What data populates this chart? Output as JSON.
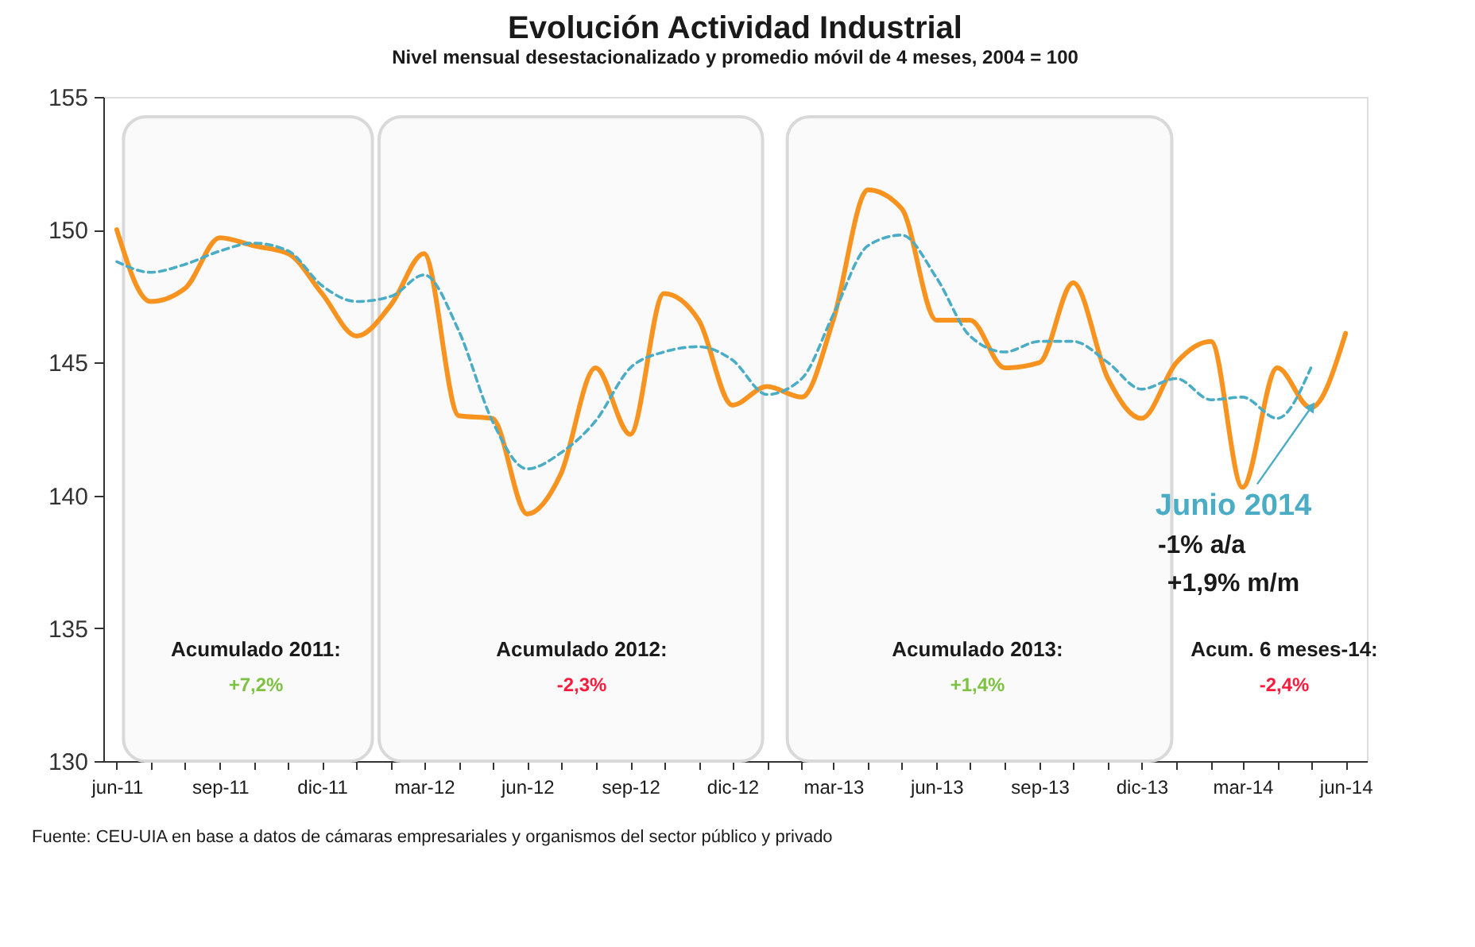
{
  "chart_data": {
    "type": "line",
    "title": "Evolución Actividad Industrial",
    "subtitle": "Nivel mensual desestacionalizado y promedio móvil de 4 meses, 2004 = 100",
    "x": [
      "2011-06",
      "2011-07",
      "2011-08",
      "2011-09",
      "2011-10",
      "2011-11",
      "2011-12",
      "2012-01",
      "2012-02",
      "2012-03",
      "2012-04",
      "2012-05",
      "2012-06",
      "2012-07",
      "2012-08",
      "2012-09",
      "2012-10",
      "2012-11",
      "2012-12",
      "2013-01",
      "2013-02",
      "2013-03",
      "2013-04",
      "2013-05",
      "2013-06",
      "2013-07",
      "2013-08",
      "2013-09",
      "2013-10",
      "2013-11",
      "2013-12",
      "2014-01",
      "2014-02",
      "2014-03",
      "2014-04",
      "2014-05",
      "2014-06"
    ],
    "series": [
      {
        "color": "#f7931e",
        "line_style": "solid",
        "values": [
          150.0,
          147.3,
          147.8,
          149.7,
          149.4,
          149.1,
          147.6,
          146.0,
          147.2,
          149.1,
          143.0,
          142.9,
          139.3,
          140.8,
          144.8,
          142.3,
          147.6,
          146.6,
          143.4,
          144.1,
          143.7,
          146.6,
          151.5,
          150.8,
          146.6,
          146.6,
          144.8,
          145.0,
          148.0,
          144.4,
          142.9,
          145.0,
          145.8,
          140.3,
          144.8,
          143.3,
          146.1
        ]
      },
      {
        "color": "#4bacc6",
        "line_style": "dashed",
        "values": [
          148.8,
          148.4,
          148.7,
          149.2,
          149.5,
          149.2,
          147.9,
          147.3,
          147.5,
          148.3,
          146.2,
          142.8,
          141.0,
          141.6,
          142.8,
          144.8,
          145.4,
          145.6,
          145.1,
          143.8,
          144.4,
          146.8,
          149.4,
          149.8,
          148.2,
          146.0,
          145.4,
          145.8,
          145.8,
          145.0,
          144.0,
          144.4,
          143.6,
          143.7,
          142.9,
          144.8,
          null
        ]
      }
    ],
    "xlim": [
      "2011-05-20",
      "2014-06-20"
    ],
    "xticks": [
      {
        "value": "2011-06",
        "label": "jun-11"
      },
      {
        "value": "2011-07",
        "label": null
      },
      {
        "value": "2011-08",
        "label": null
      },
      {
        "value": "2011-09",
        "label": "sep-11"
      },
      {
        "value": "2011-10",
        "label": null
      },
      {
        "value": "2011-11",
        "label": null
      },
      {
        "value": "2011-12",
        "label": "dic-11"
      },
      {
        "value": "2012-01",
        "label": null
      },
      {
        "value": "2012-02",
        "label": null
      },
      {
        "value": "2012-03",
        "label": "mar-12"
      },
      {
        "value": "2012-04",
        "label": null
      },
      {
        "value": "2012-05",
        "label": null
      },
      {
        "value": "2012-06",
        "label": "jun-12"
      },
      {
        "value": "2012-07",
        "label": null
      },
      {
        "value": "2012-08",
        "label": null
      },
      {
        "value": "2012-09",
        "label": "sep-12"
      },
      {
        "value": "2012-10",
        "label": null
      },
      {
        "value": "2012-11",
        "label": null
      },
      {
        "value": "2012-12",
        "label": "dic-12"
      },
      {
        "value": "2013-01",
        "label": null
      },
      {
        "value": "2013-02",
        "label": null
      },
      {
        "value": "2013-03",
        "label": "mar-13"
      },
      {
        "value": "2013-04",
        "label": null
      },
      {
        "value": "2013-05",
        "label": null
      },
      {
        "value": "2013-06",
        "label": "jun-13"
      },
      {
        "value": "2013-07",
        "label": null
      },
      {
        "value": "2013-08",
        "label": null
      },
      {
        "value": "2013-09",
        "label": "sep-13"
      },
      {
        "value": "2013-10",
        "label": null
      },
      {
        "value": "2013-11",
        "label": null
      },
      {
        "value": "2013-12",
        "label": "dic-13"
      },
      {
        "value": "2014-01",
        "label": null
      },
      {
        "value": "2014-02",
        "label": null
      },
      {
        "value": "2014-03",
        "label": "mar-14"
      },
      {
        "value": "2014-04",
        "label": null
      },
      {
        "value": "2014-05",
        "label": null
      },
      {
        "value": "2014-06",
        "label": "jun-14"
      }
    ],
    "ylim": [
      130,
      155
    ],
    "yticks": [
      130,
      135,
      140,
      145,
      150,
      155
    ],
    "grid": false,
    "marker": "none",
    "bands": [
      {
        "axis": "x",
        "from": "2011-06-07",
        "to": "2012-01-15",
        "color": "#d9d9d9"
      },
      {
        "axis": "x",
        "from": "2012-01-21",
        "to": "2012-12-28",
        "color": "#d9d9d9"
      },
      {
        "axis": "x",
        "from": "2013-01-19",
        "to": "2013-12-28",
        "color": "#d9d9d9"
      }
    ],
    "annotations": [
      "Acumulado 2011:",
      "+7,2%",
      "Acumulado 2012:",
      "-2,3%",
      "Acumulado 2013:",
      "+1,4%",
      "Acum. 6 meses-14:",
      "-2,4%",
      {
        "text": "Junio 2014",
        "x": "2014-05",
        "y": 143.3
      },
      "-1% a/a",
      "+1,9% m/m",
      "Fuente: CEU-UIA en base a datos de cámaras empresariales y organismos del sector público y privado"
    ]
  }
}
